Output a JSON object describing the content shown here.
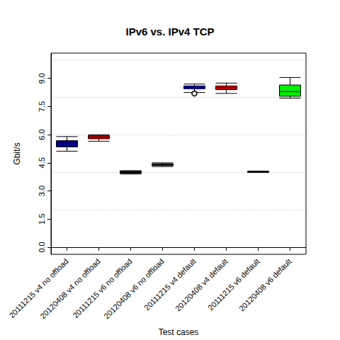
{
  "chart_data": {
    "type": "boxplot",
    "title": "IPv6 vs. IPv4 TCP",
    "x_label": "Test cases",
    "y_label": "Gbit/s",
    "categories": [
      "20111215 v4 no offload",
      "20120408 v4 no offload",
      "20111215 v6 no offload",
      "20120408 v6 no offload",
      "20111215 v4 default",
      "20120408 v4 default",
      "20111215 v6 default",
      "20120408 v6 default"
    ],
    "values": [
      [
        5.12,
        5.35,
        5.53,
        5.68,
        5.9
      ],
      [
        5.65,
        5.78,
        5.87,
        5.95,
        6.0
      ],
      [
        3.9,
        3.95,
        4.0,
        4.05,
        4.08
      ],
      [
        4.3,
        4.35,
        4.4,
        4.45,
        4.5
      ],
      [
        8.25,
        8.45,
        8.52,
        8.6,
        8.7
      ],
      [
        8.2,
        8.4,
        8.5,
        8.6,
        8.75
      ],
      [
        3.98,
        4.0,
        4.02,
        4.04,
        4.06
      ],
      [
        7.95,
        8.05,
        8.3,
        8.65,
        9.05
      ]
    ],
    "colors": [
      "#00008b",
      "#ee0000",
      "#111111",
      "#111111",
      "#0000cd",
      "#ee0000",
      "#111111",
      "#00ee00"
    ],
    "outliers": [
      {
        "category": "20111215 v4 default",
        "value": 8.2
      }
    ],
    "ylim": [
      -0.38,
      10.35
    ],
    "yticks": [
      {
        "value": 0,
        "label": "0.0"
      },
      1.5,
      {
        "value": 3,
        "label": "3.0"
      },
      4.5,
      {
        "value": 6,
        "label": "6.0"
      },
      7.5,
      {
        "value": 9,
        "label": "9.0"
      }
    ],
    "grid": true,
    "grid_lines": [
      0,
      2,
      4,
      6,
      8,
      10
    ]
  }
}
